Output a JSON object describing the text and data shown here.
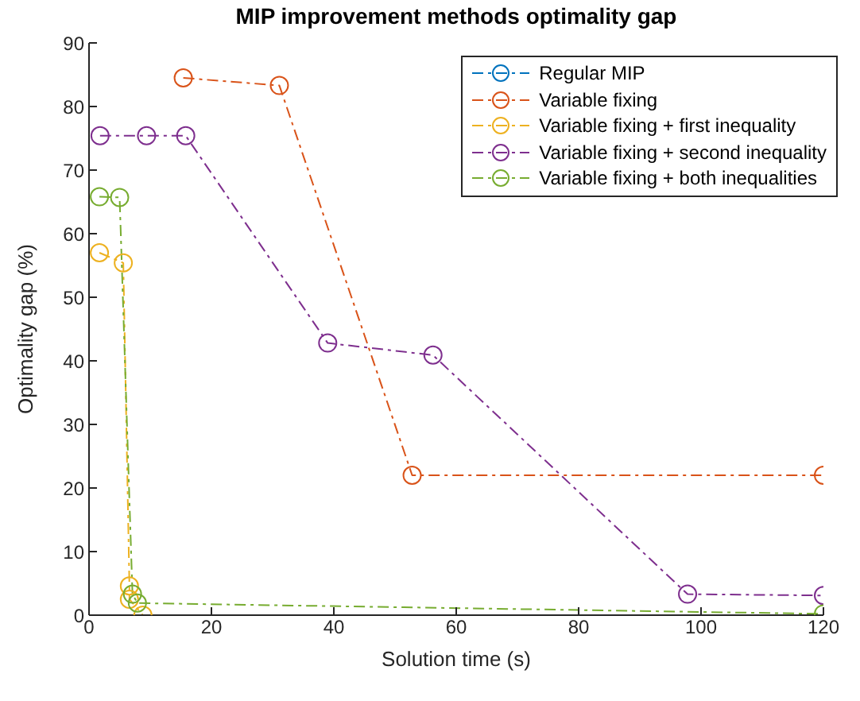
{
  "chart_data": {
    "type": "line",
    "title": "MIP improvement methods optimality gap",
    "xlabel": "Solution time (s)",
    "ylabel": "Optimality gap (%)",
    "xlim": [
      0,
      120
    ],
    "xticks": [
      0,
      20,
      40,
      60,
      80,
      100,
      120
    ],
    "ylim": [
      0,
      90
    ],
    "yticks": [
      0,
      10,
      20,
      30,
      40,
      50,
      60,
      70,
      80,
      90
    ],
    "legend": "top right",
    "marker": "circle",
    "line_style": "dashed",
    "series": [
      {
        "name": "Regular MIP",
        "color": "#0072bd"
      },
      {
        "name": "Variable fixing",
        "color": "#d95319",
        "x": [
          15.4,
          31.1,
          52.8,
          120
        ],
        "values": [
          84.5,
          83.3,
          22,
          22
        ]
      },
      {
        "name": "Variable fixing + first inequality",
        "color": "#edb120",
        "x": [
          1.7,
          5.6,
          6.6,
          6.6,
          8.8
        ],
        "values": [
          57,
          55.4,
          4.6,
          2.5,
          0
        ]
      },
      {
        "name": "Variable fixing + second inequality",
        "color": "#7e2f8e",
        "x": [
          1.8,
          9.4,
          15.8,
          39,
          56.2,
          97.8,
          120
        ],
        "values": [
          75.4,
          75.4,
          75.4,
          42.8,
          40.9,
          3.3,
          3.1
        ]
      },
      {
        "name": "Variable fixing + both inequalities",
        "color": "#77ac30",
        "x": [
          1.7,
          5,
          7.1,
          7.9,
          120
        ],
        "values": [
          65.8,
          65.7,
          3.3,
          1.9,
          0.2
        ]
      }
    ]
  }
}
